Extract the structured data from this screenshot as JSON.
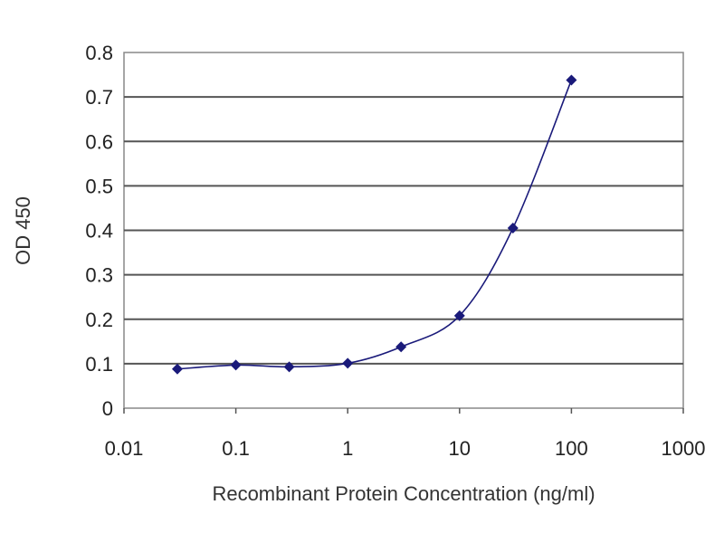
{
  "chart_data": {
    "type": "scatter",
    "title": "",
    "xlabel": "Recombinant Protein Concentration (ng/ml)",
    "ylabel": "OD 450",
    "xscale": "log",
    "xlim": [
      0.01,
      1000
    ],
    "ylim": [
      0,
      0.8
    ],
    "xticks": [
      0.01,
      0.1,
      1,
      10,
      100,
      1000
    ],
    "xtick_labels": [
      "0.01",
      "0.1",
      "1",
      "10",
      "100",
      "1000"
    ],
    "yticks": [
      0,
      0.1,
      0.2,
      0.3,
      0.4,
      0.5,
      0.6,
      0.7,
      0.8
    ],
    "ytick_labels": [
      "0",
      "0.1",
      "0.2",
      "0.3",
      "0.4",
      "0.5",
      "0.6",
      "0.7",
      "0.8"
    ],
    "grid": "horizontal",
    "legend": "none",
    "series": [
      {
        "x": [
          0.03,
          0.1,
          0.3,
          1,
          3,
          10,
          30,
          100
        ],
        "y": [
          0.088,
          0.097,
          0.093,
          0.101,
          0.138,
          0.208,
          0.405,
          0.738
        ],
        "marker": "diamond",
        "line": "smooth",
        "color": "#1a1a7a"
      }
    ]
  }
}
